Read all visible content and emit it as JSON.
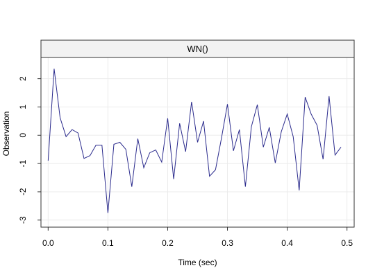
{
  "chart_data": {
    "type": "line",
    "panel_title": "WN()",
    "xlabel": "Time (sec)",
    "ylabel": "Observation",
    "xlim": [
      -0.012,
      0.512
    ],
    "ylim": [
      -3.25,
      2.75
    ],
    "grid": true,
    "x_ticks": [
      0.0,
      0.1,
      0.2,
      0.3,
      0.4,
      0.5
    ],
    "x_tick_labels": [
      "0.0",
      "0.1",
      "0.2",
      "0.3",
      "0.4",
      "0.5"
    ],
    "y_ticks": [
      -3,
      -2,
      -1,
      0,
      1,
      2
    ],
    "y_tick_labels": [
      "-3",
      "-2",
      "-1",
      "0",
      "1",
      "2"
    ],
    "colors": {
      "line": "#2a2a8c",
      "strip_fill": "#f2f2f2",
      "grid": "#ebebeb"
    },
    "series": [
      {
        "x": [
          0.0,
          0.01,
          0.02,
          0.03,
          0.04,
          0.05,
          0.06,
          0.07,
          0.08,
          0.09,
          0.1,
          0.11,
          0.12,
          0.13,
          0.14,
          0.15,
          0.16,
          0.17,
          0.18,
          0.19,
          0.2,
          0.21,
          0.22,
          0.23,
          0.24,
          0.25,
          0.26,
          0.27,
          0.28,
          0.29,
          0.3,
          0.31,
          0.32,
          0.33,
          0.34,
          0.35,
          0.36,
          0.37,
          0.38,
          0.39,
          0.4,
          0.41,
          0.42,
          0.43,
          0.44,
          0.45,
          0.46,
          0.47,
          0.48,
          0.49
        ],
        "values": [
          -0.9,
          2.35,
          0.62,
          -0.05,
          0.2,
          0.08,
          -0.82,
          -0.72,
          -0.35,
          -0.35,
          -2.75,
          -0.32,
          -0.25,
          -0.5,
          -1.82,
          -0.12,
          -1.15,
          -0.62,
          -0.52,
          -0.95,
          0.6,
          -1.55,
          0.42,
          -0.58,
          1.18,
          -0.25,
          0.5,
          -1.45,
          -1.22,
          -0.1,
          1.1,
          -0.55,
          0.2,
          -1.82,
          0.3,
          1.08,
          -0.42,
          0.28,
          -0.98,
          0.12,
          0.75,
          -0.05,
          -1.95,
          1.35,
          0.75,
          0.35,
          -0.85,
          1.38,
          -0.7,
          -0.42
        ]
      }
    ]
  }
}
